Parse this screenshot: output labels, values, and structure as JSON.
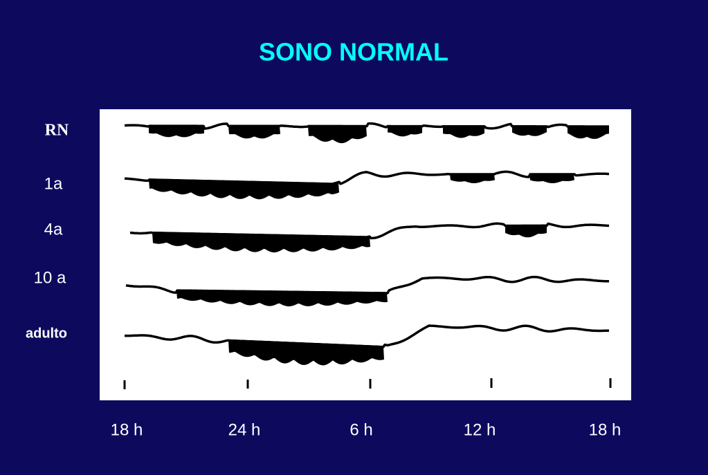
{
  "title": "SONO NORMAL",
  "rows": [
    "RN",
    "1a",
    "4a",
    "10 a",
    "adulto"
  ],
  "time_labels": [
    "18 h",
    "24 h",
    "6 h",
    "12 h",
    "18 h"
  ]
}
